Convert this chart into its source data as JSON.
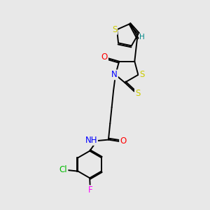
{
  "background_color": "#e8e8e8",
  "bond_color": "#000000",
  "atom_colors": {
    "S": "#cccc00",
    "N": "#0000ff",
    "O": "#ff0000",
    "Cl": "#00bb00",
    "F": "#ff00ff",
    "H": "#008888",
    "C": "#000000"
  },
  "font_size_atom": 8.5,
  "fig_width": 3.0,
  "fig_height": 3.0,
  "dpi": 100
}
